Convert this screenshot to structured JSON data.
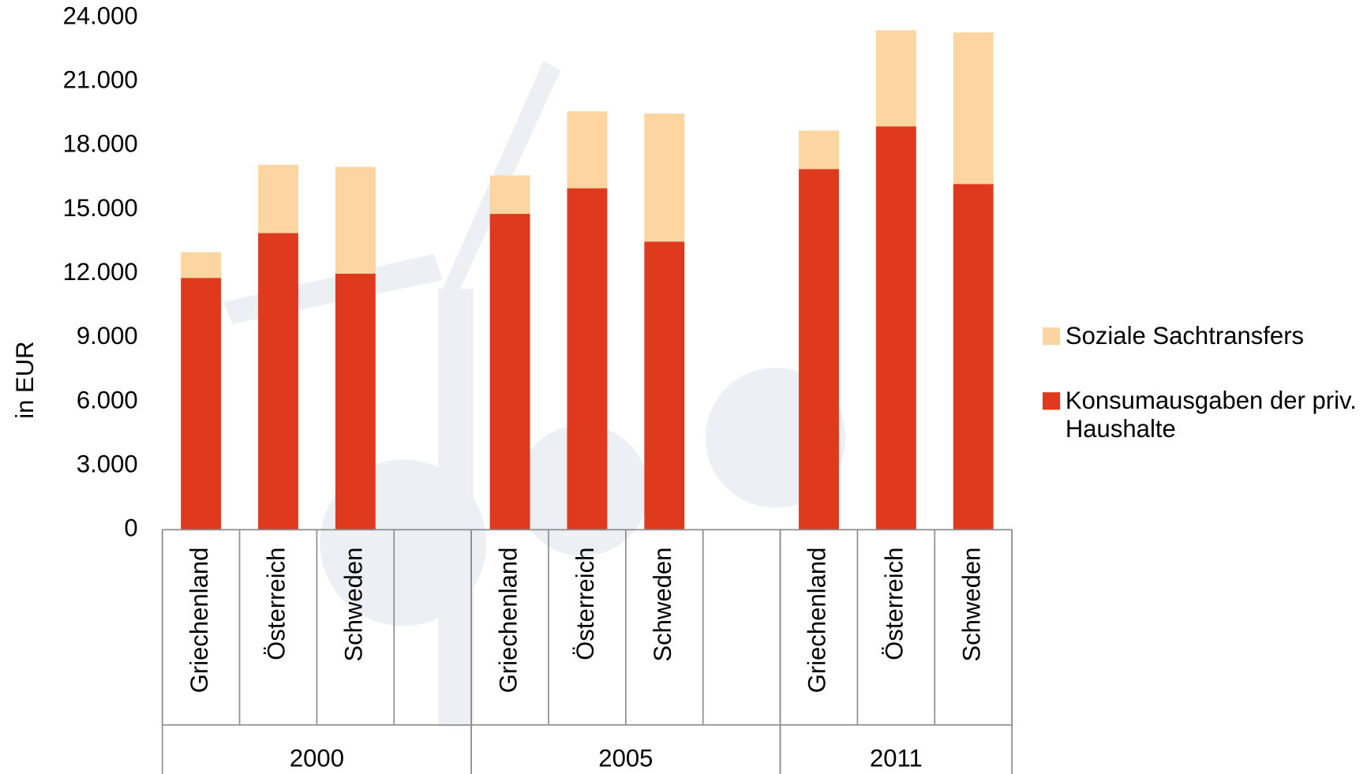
{
  "chart_data": {
    "type": "stacked_bar",
    "y_label": "in EUR",
    "categories": [
      "Griechenland",
      "Österreich",
      "Schweden",
      null,
      "Griechenland",
      "Österreich",
      "Schweden",
      null,
      "Griechenland",
      "Österreich",
      "Schweden"
    ],
    "groups": [
      "2000",
      "2005",
      "2011"
    ],
    "series": [
      {
        "name": "Konsumausgaben der priv. Haushalte",
        "color": "#e03a1e",
        "values": [
          11800,
          13900,
          12000,
          null,
          14800,
          16000,
          13500,
          null,
          16900,
          18900,
          16200
        ]
      },
      {
        "name": "Soziale Sachtransfers",
        "color": "#fdd5a0",
        "values": [
          1200,
          3200,
          5000,
          null,
          1800,
          3600,
          6000,
          null,
          1800,
          4500,
          7100
        ]
      }
    ],
    "ylim": [
      0,
      24000
    ],
    "yticks": [
      0,
      {
        "value": 3000,
        "label": "3.000"
      },
      {
        "value": 6000,
        "label": "6.000"
      },
      {
        "value": 9000,
        "label": "9.000"
      },
      {
        "value": 12000,
        "label": "12.000"
      },
      {
        "value": 15000,
        "label": "15.000"
      },
      {
        "value": 18000,
        "label": "18.000"
      },
      {
        "value": 21000,
        "label": "21.000"
      },
      {
        "value": 24000,
        "label": "24.000"
      }
    ],
    "legend_position": "right"
  }
}
